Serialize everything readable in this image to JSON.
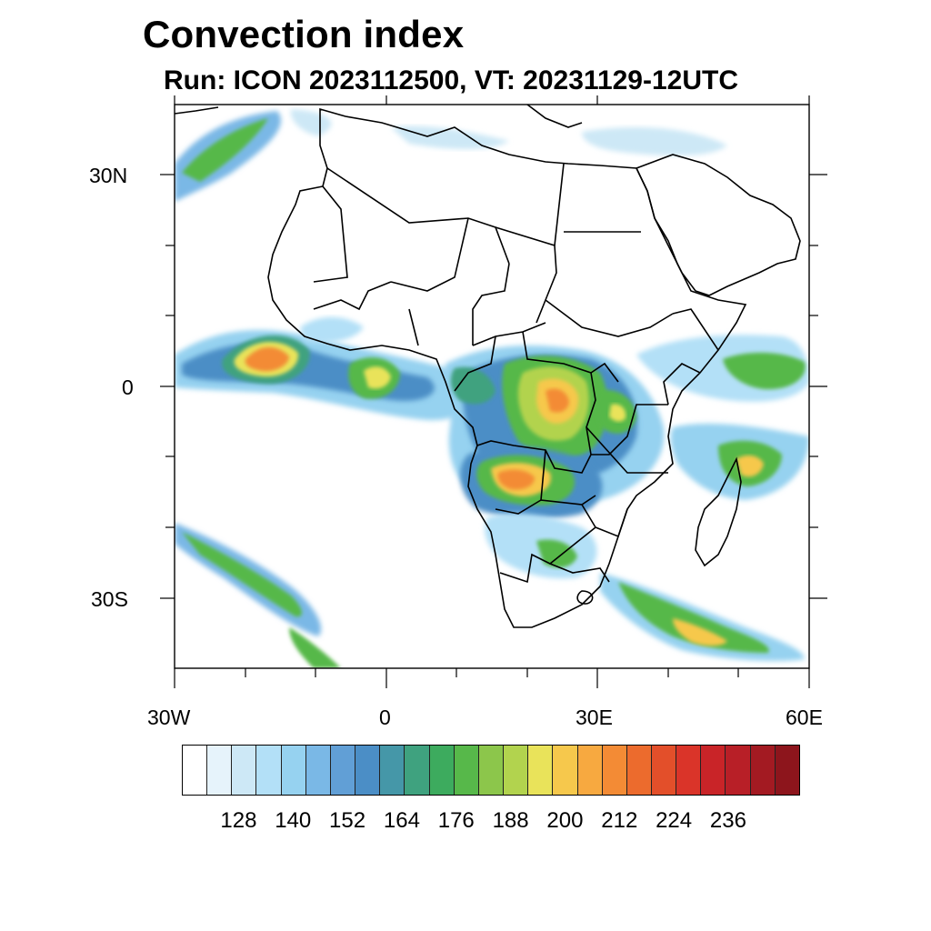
{
  "title": "Convection index",
  "subtitle": "Run: ICON 2023112500,  VT: 20231129-12UTC",
  "map": {
    "lon_range": [
      -30,
      60
    ],
    "lat_range": [
      -40,
      40
    ],
    "lat_labels": [
      "30N",
      "0",
      "30S"
    ],
    "lon_labels": [
      "30W",
      "0",
      "30E",
      "60E"
    ]
  },
  "colorbar": {
    "colors": [
      "#ffffff",
      "#e6f3fb",
      "#cde8f6",
      "#b3e0f7",
      "#96d2f0",
      "#7ab8e6",
      "#619fd6",
      "#4b8ec6",
      "#4597a8",
      "#3fa27f",
      "#3dab5e",
      "#57b84a",
      "#8cc64b",
      "#b2d34e",
      "#e9e35a",
      "#f6c84c",
      "#f7a940",
      "#f38b35",
      "#ec6b2d",
      "#e34f2a",
      "#da3429",
      "#c92428",
      "#b81f27",
      "#a31a22",
      "#8d151c"
    ],
    "labels": [
      "128",
      "140",
      "152",
      "164",
      "176",
      "188",
      "200",
      "212",
      "224",
      "236"
    ]
  }
}
